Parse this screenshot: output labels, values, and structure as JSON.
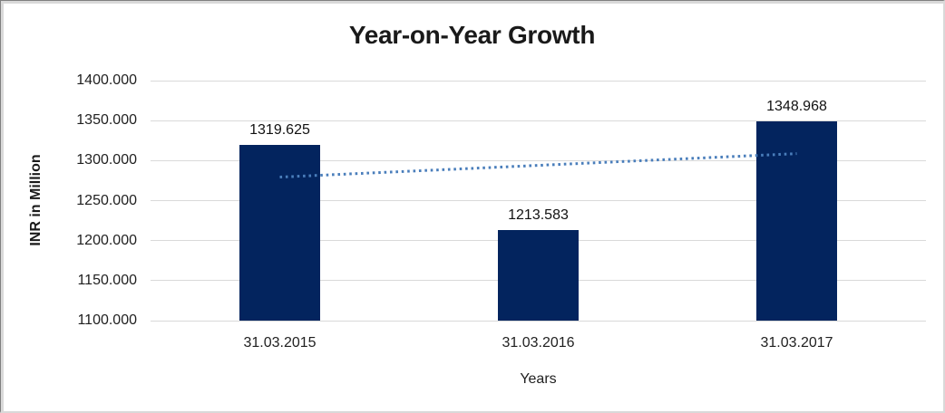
{
  "chart_data": {
    "type": "bar",
    "title": "Year-on-Year Growth",
    "categories": [
      "31.03.2015",
      "31.03.2016",
      "31.03.2017"
    ],
    "values": [
      1319.625,
      1213.583,
      1348.968
    ],
    "data_labels": [
      "1319.625",
      "1213.583",
      "1348.968"
    ],
    "xlabel": "Years",
    "ylabel": "INR in Million",
    "ylim": [
      1100,
      1400
    ],
    "ytick_step": 50,
    "ytick_labels": [
      "1400.000",
      "1350.000",
      "1300.000",
      "1250.000",
      "1200.000",
      "1150.000",
      "1100.000"
    ],
    "grid": true,
    "legend_position": "none",
    "trendline": {
      "type": "linear",
      "style": "dotted"
    },
    "colors": {
      "bar": "#03245e",
      "trendline": "#4a7ebb",
      "gridline": "#d9d9d9",
      "title_text": "#1a1a1a",
      "axis_text": "#1f1f1f"
    }
  }
}
